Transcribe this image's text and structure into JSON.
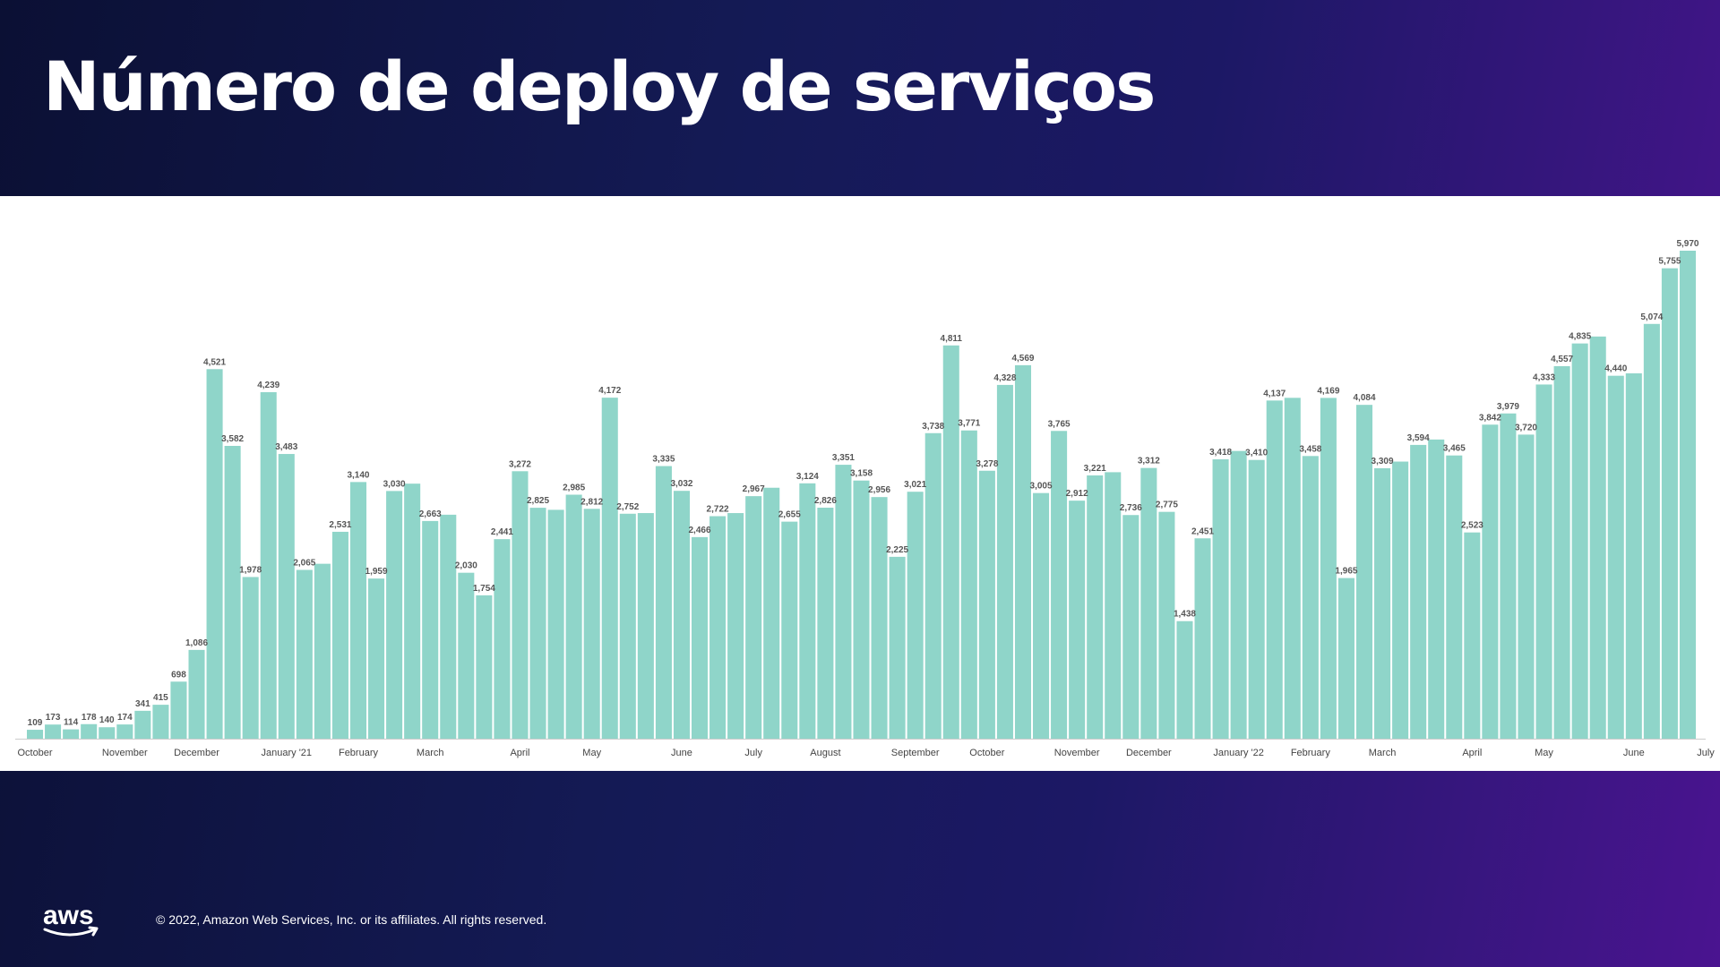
{
  "slide": {
    "title": "Número de deploy de serviços",
    "copyright": "© 2022, Amazon Web Services, Inc. or its affiliates. All rights reserved.",
    "logo_text": "aws",
    "colors": {
      "bar": "#8fd5c9",
      "title": "#ffffff",
      "accent": "#4a1490"
    }
  },
  "chart_data": {
    "type": "bar",
    "title": "Número de deploy de serviços",
    "xlabel": "",
    "ylabel": "",
    "ylim": [
      0,
      6200
    ],
    "grid": false,
    "month_labels": [
      "October",
      "November",
      "December",
      "January '21",
      "February",
      "March",
      "April",
      "May",
      "June",
      "July",
      "August",
      "September",
      "October",
      "November",
      "December",
      "January '22",
      "February",
      "March",
      "April",
      "May",
      "June",
      "July"
    ],
    "month_label_bar_index": [
      0,
      5,
      9,
      14,
      18,
      22,
      27,
      31,
      36,
      40,
      44,
      49,
      53,
      58,
      62,
      67,
      71,
      75,
      80,
      84,
      89,
      93
    ],
    "values": [
      109,
      173,
      114,
      178,
      140,
      174,
      341,
      415,
      698,
      1086,
      4521,
      3582,
      1978,
      4239,
      3483,
      2065,
      2140,
      2531,
      3140,
      1959,
      3030,
      3120,
      2663,
      2740,
      2030,
      1754,
      2441,
      3272,
      2825,
      2800,
      2985,
      2812,
      4172,
      2752,
      2760,
      3335,
      3032,
      2466,
      2722,
      2760,
      2967,
      3070,
      2655,
      3124,
      2826,
      3351,
      3158,
      2956,
      2225,
      3021,
      3738,
      4811,
      3771,
      3278,
      4328,
      4569,
      3005,
      3765,
      2912,
      3221,
      3260,
      2736,
      3312,
      2775,
      1438,
      2451,
      3418,
      3520,
      3410,
      4137,
      4170,
      3458,
      4169,
      1965,
      4084,
      3309,
      3390,
      3594,
      3660,
      3465,
      2523,
      3842,
      3979,
      3720,
      4333,
      4557,
      4835,
      4920,
      4440,
      4470,
      5074,
      5755,
      5970
    ],
    "labels": [
      "109",
      "173",
      "114",
      "178",
      "140",
      "174",
      "341",
      "415",
      "698",
      "1,086",
      "4,521",
      "3,582",
      "1,978",
      "4,239",
      "3,483",
      "2,065",
      "",
      "2,531",
      "3,140",
      "1,959",
      "3,030",
      "",
      "2,663",
      "",
      "2,030",
      "1,754",
      "2,441",
      "3,272",
      "2,825",
      "",
      "2,985",
      "2,812",
      "4,172",
      "2,752",
      "",
      "3,335",
      "3,032",
      "2,466",
      "2,722",
      "",
      "2,967",
      "",
      "2,655",
      "3,124",
      "2,826",
      "3,351",
      "3,158",
      "2,956",
      "2,225",
      "3,021",
      "3,738",
      "4,811",
      "3,771",
      "3,278",
      "4,328",
      "4,569",
      "3,005",
      "3,765",
      "2,912",
      "3,221",
      "",
      "2,736",
      "3,312",
      "2,775",
      "1,438",
      "2,451",
      "3,418",
      "",
      "3,410",
      "4,137",
      "",
      "3,458",
      "4,169",
      "1,965",
      "4,084",
      "3,309",
      "",
      "3,594",
      "",
      "3,465",
      "2,523",
      "3,842",
      "3,979",
      "3,720",
      "4,333",
      "4,557",
      "4,835",
      "",
      "4,440",
      "",
      "5,074",
      "5,755",
      "5,970"
    ]
  }
}
